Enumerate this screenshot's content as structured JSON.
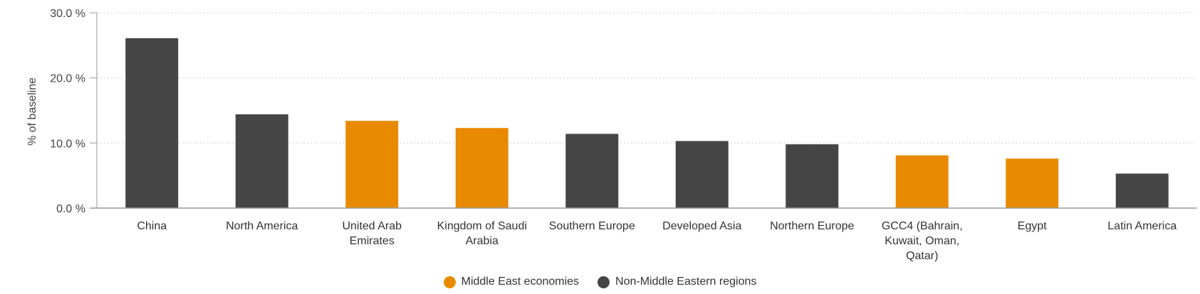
{
  "colors": {
    "middle_east": "#E88A00",
    "non_middle_east": "#454545",
    "grid": "#cfcfcf",
    "axis": "#999999"
  },
  "legend": [
    {
      "label": "Middle East economies",
      "color": "#E88A00"
    },
    {
      "label": "Non-Middle Eastern regions",
      "color": "#454545"
    }
  ],
  "chart_data": {
    "type": "bar",
    "title": "",
    "xlabel": "",
    "ylabel": "% of baseline",
    "ylim": [
      0,
      30
    ],
    "yticks": [
      0,
      10,
      20,
      30
    ],
    "ytick_labels": [
      "0.0 %",
      "10.0 %",
      "20.0 %",
      "30.0 %"
    ],
    "grid": true,
    "legend_position": "bottom",
    "categories": [
      "China",
      "North America",
      "United Arab Emirates",
      "Kingdom of Saudi Arabia",
      "Southern Europe",
      "Developed Asia",
      "Northern Europe",
      "GCC4 (Bahrain, Kuwait, Oman, Qatar)",
      "Egypt",
      "Latin America"
    ],
    "category_label_lines": [
      [
        "China"
      ],
      [
        "North America"
      ],
      [
        "United Arab",
        "Emirates"
      ],
      [
        "Kingdom of Saudi",
        "Arabia"
      ],
      [
        "Southern Europe"
      ],
      [
        "Developed Asia"
      ],
      [
        "Northern Europe"
      ],
      [
        "GCC4 (Bahrain,",
        "Kuwait, Oman,",
        "Qatar)"
      ],
      [
        "Egypt"
      ],
      [
        "Latin America"
      ]
    ],
    "values": [
      26.1,
      14.4,
      13.4,
      12.3,
      11.4,
      10.3,
      9.8,
      8.1,
      7.6,
      5.3
    ],
    "groups": [
      "Non-Middle Eastern regions",
      "Non-Middle Eastern regions",
      "Middle East economies",
      "Middle East economies",
      "Non-Middle Eastern regions",
      "Non-Middle Eastern regions",
      "Non-Middle Eastern regions",
      "Middle East economies",
      "Middle East economies",
      "Non-Middle Eastern regions"
    ]
  }
}
